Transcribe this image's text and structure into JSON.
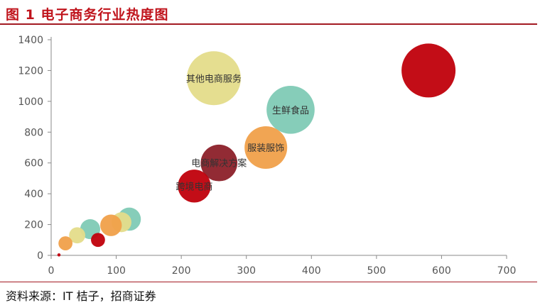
{
  "header": {
    "title": "图 1  电子商务行业热度图"
  },
  "footer": {
    "source": "资料来源：IT 桔子，招商证券"
  },
  "chart_data": {
    "type": "scatter",
    "subtype": "bubble",
    "title": "图 1  电子商务行业热度图",
    "xlabel": "",
    "ylabel": "",
    "xlim": [
      0,
      700
    ],
    "ylim": [
      0,
      1400
    ],
    "x_ticks": [
      0,
      100,
      200,
      300,
      400,
      500,
      600,
      700
    ],
    "y_ticks": [
      0,
      200,
      400,
      600,
      800,
      1000,
      1200,
      1400
    ],
    "grid": false,
    "legend": "none",
    "points": [
      {
        "label": "",
        "x": 580,
        "y": 1200,
        "size": 1.0,
        "color": "#c0000b"
      },
      {
        "label": "其他电商服务",
        "x": 250,
        "y": 1150,
        "size": 1.0,
        "color": "#e4dc8a"
      },
      {
        "label": "生鲜食品",
        "x": 368,
        "y": 945,
        "size": 0.89,
        "color": "#7fcab5"
      },
      {
        "label": "服装服饰",
        "x": 330,
        "y": 700,
        "size": 0.79,
        "color": "#f0a04a"
      },
      {
        "label": "电商解决方案",
        "x": 258,
        "y": 600,
        "size": 0.68,
        "color": "#8c2029"
      },
      {
        "label": "跨境电商",
        "x": 220,
        "y": 450,
        "size": 0.61,
        "color": "#c0000b"
      },
      {
        "label": "",
        "x": 120,
        "y": 235,
        "size": 0.43,
        "color": "#7fcab5"
      },
      {
        "label": "",
        "x": 108,
        "y": 215,
        "size": 0.37,
        "color": "#e4dc8a"
      },
      {
        "label": "",
        "x": 92,
        "y": 195,
        "size": 0.4,
        "color": "#f0a04a"
      },
      {
        "label": "",
        "x": 60,
        "y": 170,
        "size": 0.37,
        "color": "#7fcab5"
      },
      {
        "label": "",
        "x": 40,
        "y": 130,
        "size": 0.3,
        "color": "#e4dc8a"
      },
      {
        "label": "",
        "x": 72,
        "y": 100,
        "size": 0.26,
        "color": "#c0000b"
      },
      {
        "label": "",
        "x": 22,
        "y": 78,
        "size": 0.26,
        "color": "#f0a04a"
      },
      {
        "label": "",
        "x": 12,
        "y": 3,
        "size": 0.06,
        "color": "#c0000b"
      }
    ]
  }
}
